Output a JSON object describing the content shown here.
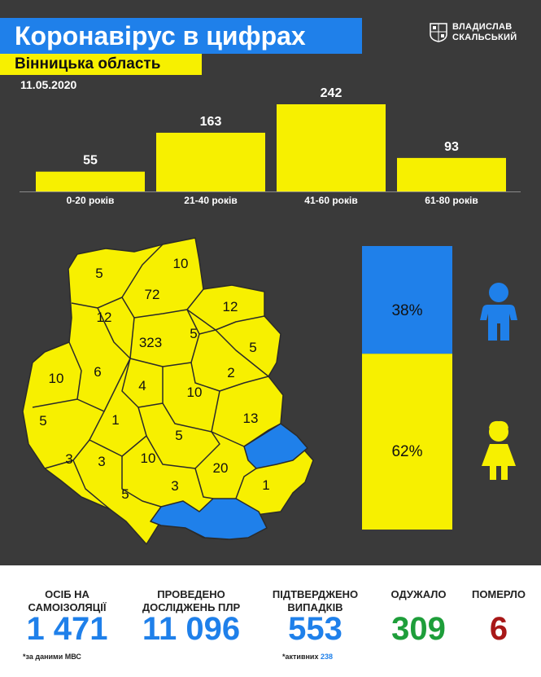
{
  "header": {
    "title": "Коронавірус в цифрах",
    "subtitle": "Вінницька область",
    "date": "11.05.2020",
    "logo_line1": "ВЛАДИСЛАВ",
    "logo_line2": "СКАЛЬСЬКИЙ"
  },
  "colors": {
    "background": "#3a3a3a",
    "yellow": "#f7f000",
    "blue": "#1f80ea",
    "green": "#1e9e3a",
    "red": "#a81818"
  },
  "chart_data": [
    {
      "type": "bar",
      "categories": [
        "0-20 років",
        "21-40 років",
        "41-60 років",
        "61-80 років"
      ],
      "values": [
        55,
        163,
        242,
        93
      ],
      "ylim": [
        0,
        242
      ],
      "grid": false
    },
    {
      "type": "bar",
      "stacked": true,
      "series": [
        {
          "value": 38,
          "label": "38%",
          "color": "#1f80ea",
          "icon": "boy-icon"
        },
        {
          "value": 62,
          "label": "62%",
          "color": "#f7f000",
          "icon": "girl-icon"
        }
      ]
    }
  ],
  "map": {
    "district_values": [
      "5",
      "10",
      "72",
      "12",
      "12",
      "323",
      "5",
      "5",
      "10",
      "6",
      "4",
      "2",
      "10",
      "5",
      "1",
      "13",
      "5",
      "3",
      "3",
      "10",
      "20",
      "5",
      "3",
      "1"
    ]
  },
  "stats": [
    {
      "label_line1": "ОСІБ НА",
      "label_line2": "САМОІЗОЛЯЦІЇ",
      "value": "1 471",
      "color": "#1f80ea"
    },
    {
      "label_line1": "ПРОВЕДЕНО",
      "label_line2": "ДОСЛІДЖЕНЬ ПЛР",
      "value": "11 096",
      "color": "#1f80ea"
    },
    {
      "label_line1": "ПІДТВЕРДЖЕНО",
      "label_line2": "ВИПАДКІВ",
      "value": "553",
      "color": "#1f80ea"
    },
    {
      "label_line1": "ОДУЖАЛО",
      "label_line2": "",
      "value": "309",
      "color": "#1e9e3a"
    },
    {
      "label_line1": "ПОМЕРЛО",
      "label_line2": "",
      "value": "6",
      "color": "#a81818"
    }
  ],
  "notes": {
    "source": "*за даними МВС",
    "active_label": "*активних",
    "active_value": "238"
  }
}
